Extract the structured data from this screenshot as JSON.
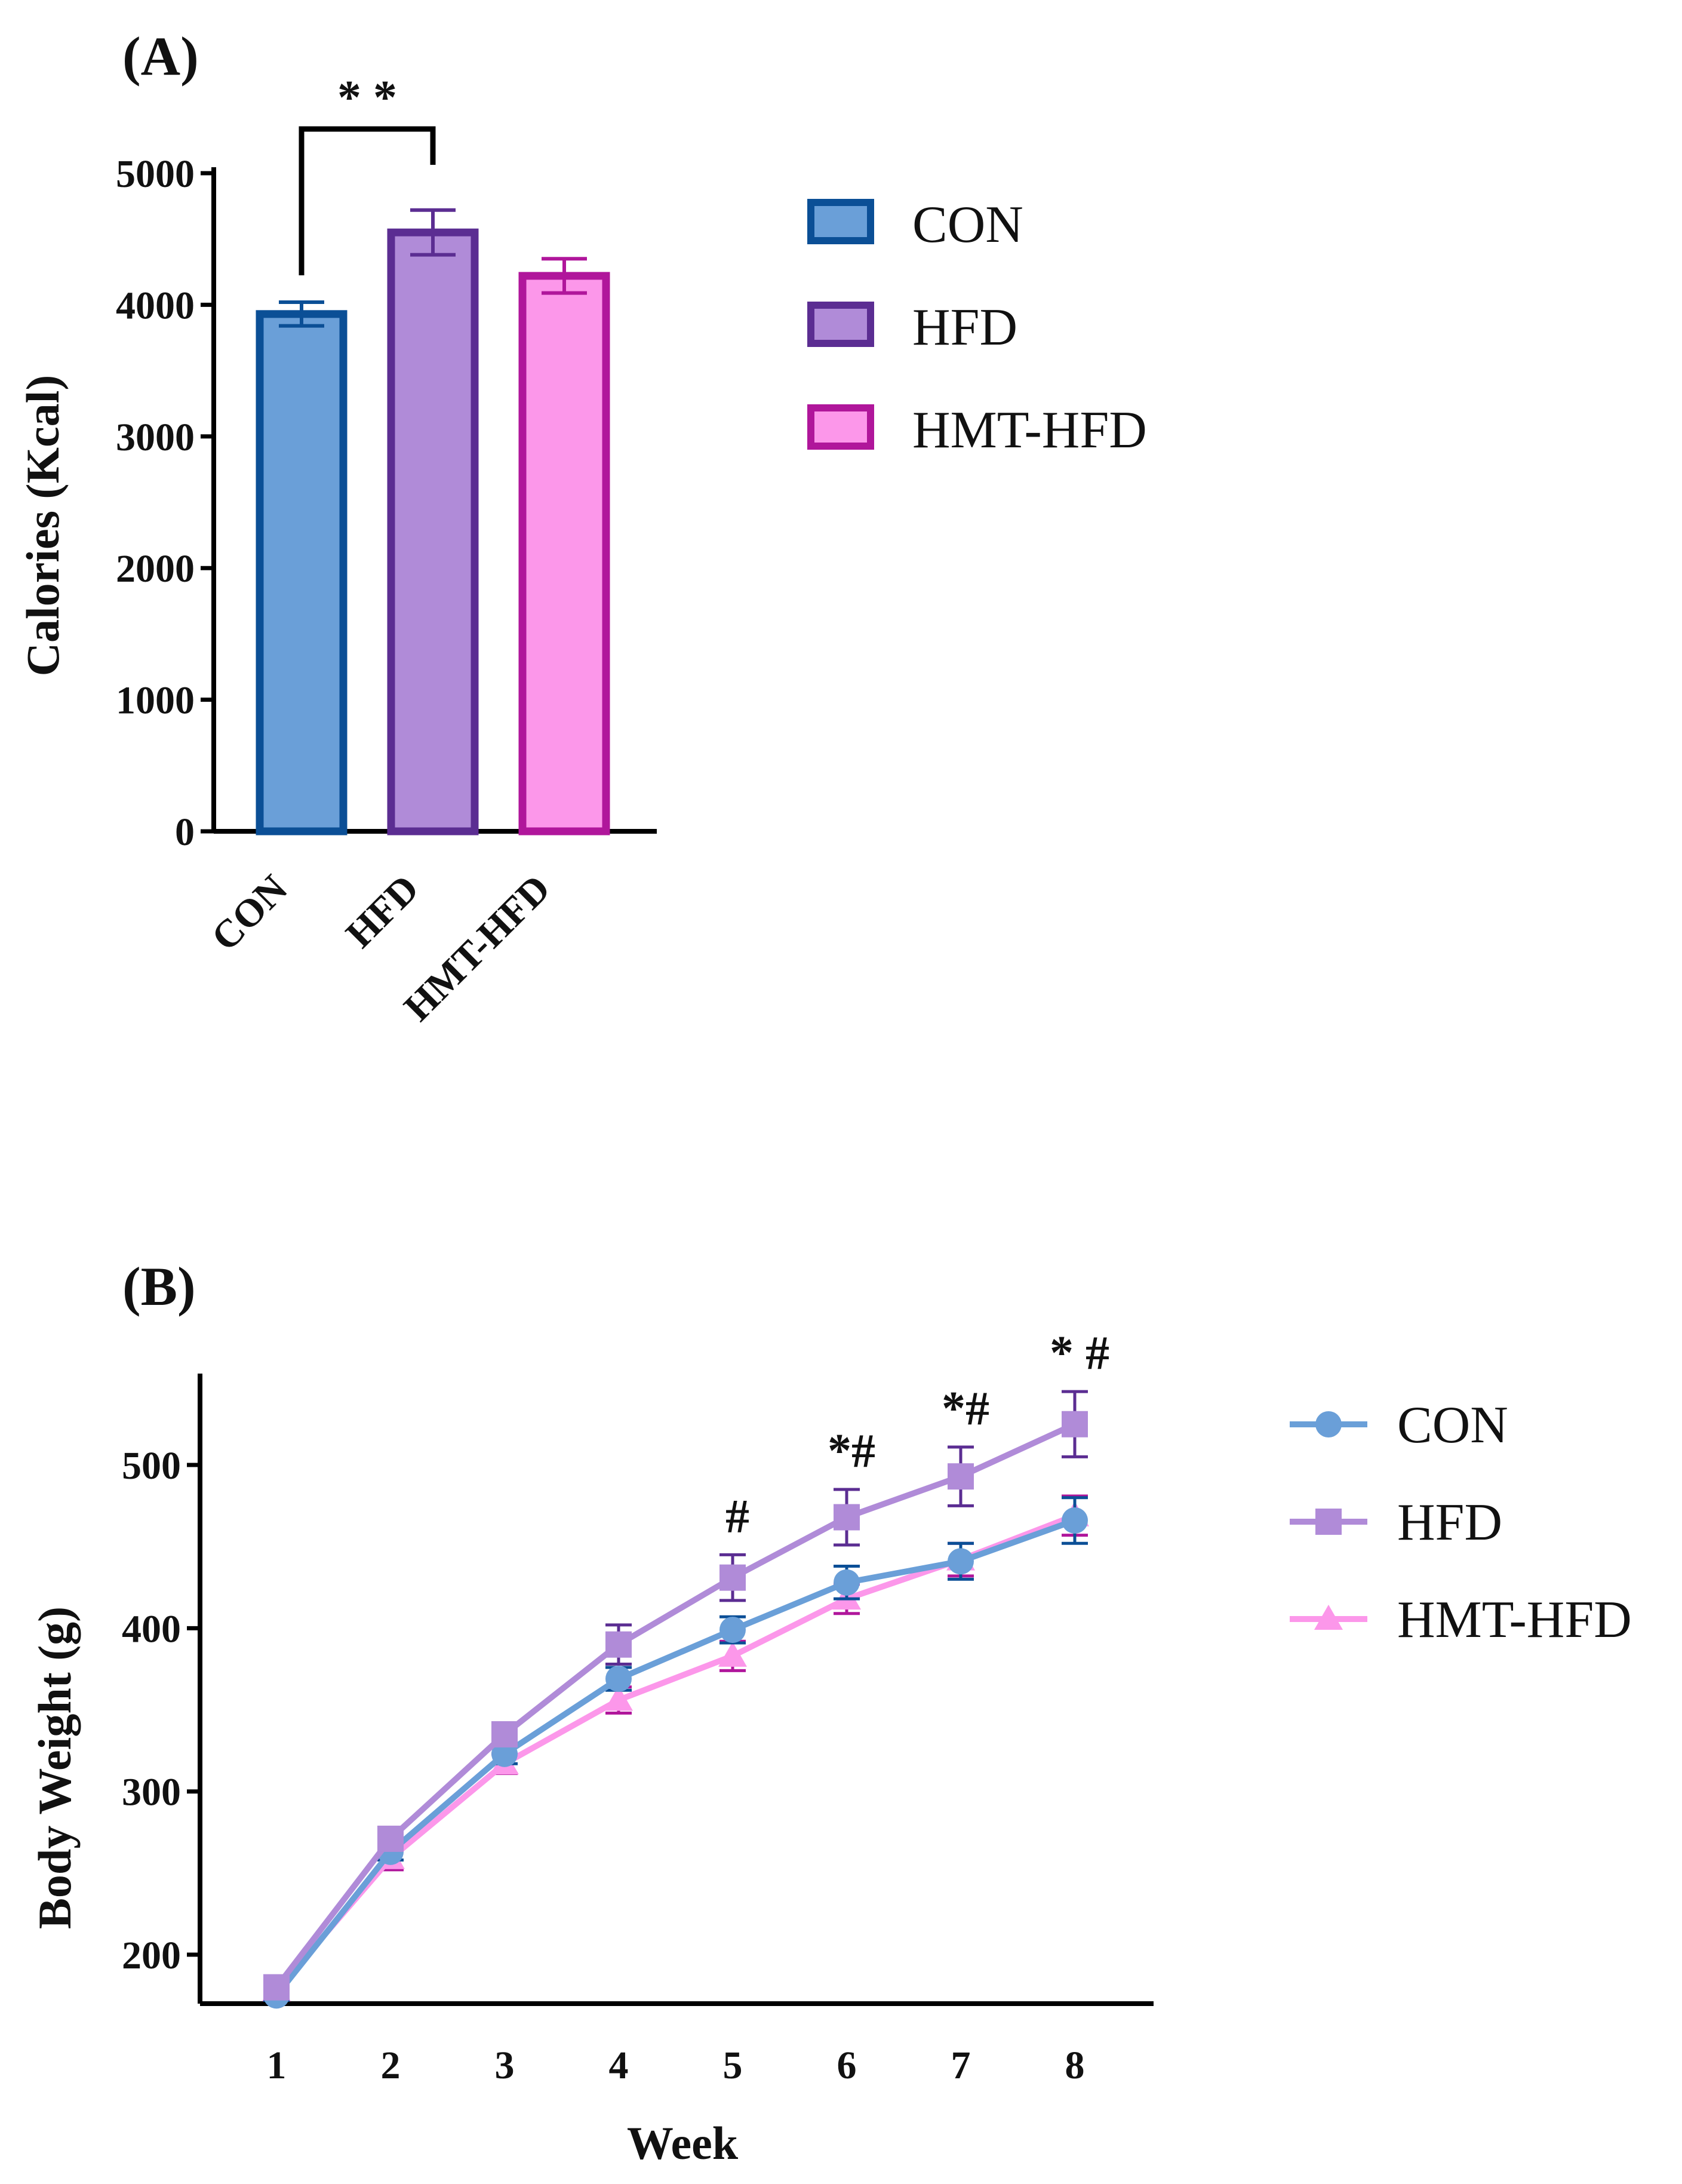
{
  "chart_data": [
    {
      "panel": "(A)",
      "type": "bar",
      "categories": [
        "CON",
        "HFD",
        "HMT-HFD"
      ],
      "values": [
        3930,
        4550,
        4220
      ],
      "errors": [
        90,
        170,
        130
      ],
      "ylabel": "Calories (Kcal)",
      "xlabel": "",
      "ylim": [
        0,
        5000
      ],
      "yticks": [
        0,
        1000,
        2000,
        3000,
        4000,
        5000
      ],
      "series_colors": {
        "CON": {
          "fill": "#6a9fd8",
          "stroke": "#0b4f96"
        },
        "HFD": {
          "fill": "#b08bd8",
          "stroke": "#5b2d92"
        },
        "HMT-HFD": {
          "fill": "#fc97ea",
          "stroke": "#b0169b"
        }
      },
      "significance": {
        "from": "CON",
        "to": "HFD",
        "label": "* *"
      },
      "legend": [
        "CON",
        "HFD",
        "HMT-HFD"
      ],
      "legend_position": "right"
    },
    {
      "panel": "(B)",
      "type": "line",
      "x": [
        1,
        2,
        3,
        4,
        5,
        6,
        7,
        8
      ],
      "xlabel": "Week",
      "ylabel": "Body Weight (g)",
      "ylim": [
        170,
        556
      ],
      "yticks": [
        200,
        300,
        400,
        500
      ],
      "series": [
        {
          "name": "CON",
          "marker": "circle",
          "color": "#6a9fd8",
          "err_color": "#0b4f96",
          "values": [
            175,
            263,
            323,
            369,
            399,
            428,
            441,
            466
          ],
          "errors": [
            3,
            5,
            6,
            7,
            8,
            10,
            11,
            14
          ]
        },
        {
          "name": "HFD",
          "marker": "square",
          "color": "#b08bd8",
          "err_color": "#5b2d92",
          "values": [
            180,
            271,
            335,
            390,
            431,
            468,
            493,
            525
          ],
          "errors": [
            3,
            6,
            6,
            12,
            14,
            17,
            18,
            20
          ]
        },
        {
          "name": "HMT-HFD",
          "marker": "triangle",
          "color": "#fc97ea",
          "err_color": "#b0169b",
          "values": [
            178,
            259,
            317,
            356,
            383,
            418,
            442,
            469
          ],
          "errors": [
            3,
            7,
            6,
            8,
            9,
            9,
            10,
            12
          ]
        }
      ],
      "annotations": [
        {
          "x": 5,
          "label": "#"
        },
        {
          "x": 6,
          "label": "*#"
        },
        {
          "x": 7,
          "label": "*#"
        },
        {
          "x": 8,
          "label": "* #"
        }
      ],
      "legend": [
        "CON",
        "HFD",
        "HMT-HFD"
      ],
      "legend_position": "right"
    }
  ]
}
